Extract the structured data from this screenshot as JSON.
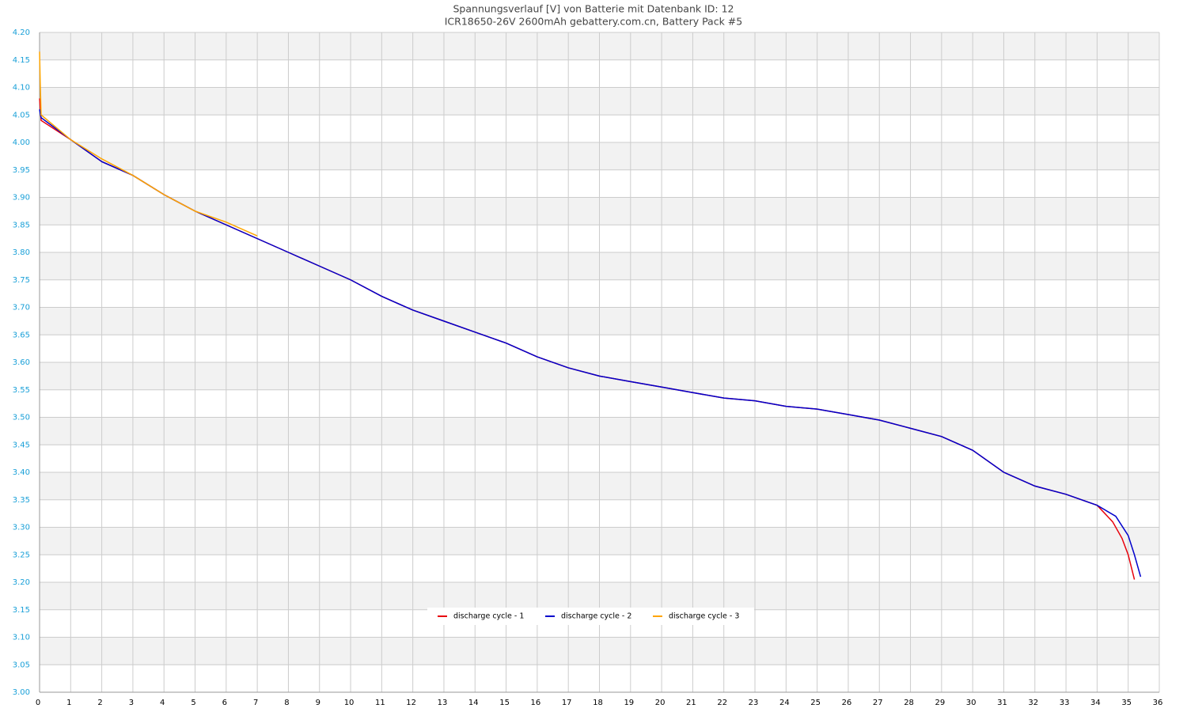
{
  "chart_data": {
    "type": "line",
    "title": "Spannungsverlauf [V] von Batterie mit Datenbank ID: 12",
    "subtitle": "ICR18650-26V 2600mAh gebattery.com.cn, Battery Pack #5",
    "xlim": [
      0,
      36
    ],
    "xticks": [
      0,
      1,
      2,
      3,
      4,
      5,
      6,
      7,
      8,
      9,
      10,
      11,
      12,
      13,
      14,
      15,
      16,
      17,
      18,
      19,
      20,
      21,
      22,
      23,
      24,
      25,
      26,
      27,
      28,
      29,
      30,
      31,
      32,
      33,
      34,
      35,
      36
    ],
    "ylim": [
      3.0,
      4.2
    ],
    "yticks": [
      {
        "value": 3.0,
        "label": "3.00"
      },
      {
        "value": 3.05,
        "label": "3.05"
      },
      {
        "value": 3.1,
        "label": "3.10"
      },
      {
        "value": 3.15,
        "label": "3.15"
      },
      {
        "value": 3.2,
        "label": "3.20"
      },
      {
        "value": 3.25,
        "label": "3.25"
      },
      {
        "value": 3.3,
        "label": "3.30"
      },
      {
        "value": 3.35,
        "label": "3.35"
      },
      {
        "value": 3.4,
        "label": "3.40"
      },
      {
        "value": 3.45,
        "label": "3.45"
      },
      {
        "value": 3.5,
        "label": "3.50"
      },
      {
        "value": 3.55,
        "label": "3.55"
      },
      {
        "value": 3.6,
        "label": "3.60"
      },
      {
        "value": 3.65,
        "label": "3.65"
      },
      {
        "value": 3.7,
        "label": "3.70"
      },
      {
        "value": 3.75,
        "label": "3.75"
      },
      {
        "value": 3.8,
        "label": "3.80"
      },
      {
        "value": 3.85,
        "label": "3.85"
      },
      {
        "value": 3.9,
        "label": "3.90"
      },
      {
        "value": 3.95,
        "label": "3.95"
      },
      {
        "value": 4.0,
        "label": "4.00"
      },
      {
        "value": 4.05,
        "label": "4.05"
      },
      {
        "value": 4.1,
        "label": "4.10"
      },
      {
        "value": 4.15,
        "label": "4.15"
      },
      {
        "value": 4.2,
        "label": "4.20"
      }
    ],
    "grid": true,
    "legend": "bottom",
    "series": [
      {
        "name": "discharge cycle - 1",
        "color": "#e8000b",
        "x": [
          0,
          0.05,
          1,
          2,
          3,
          4,
          5,
          6,
          7,
          8,
          9,
          10,
          11,
          12,
          13,
          14,
          15,
          16,
          17,
          18,
          19,
          20,
          21,
          22,
          23,
          24,
          25,
          26,
          27,
          28,
          29,
          30,
          31,
          32,
          33,
          34,
          34.5,
          34.8,
          35,
          35.2
        ],
        "values": [
          4.08,
          4.04,
          4.005,
          3.965,
          3.94,
          3.905,
          3.875,
          3.85,
          3.825,
          3.8,
          3.775,
          3.75,
          3.72,
          3.695,
          3.675,
          3.655,
          3.635,
          3.61,
          3.59,
          3.575,
          3.565,
          3.555,
          3.545,
          3.535,
          3.53,
          3.52,
          3.515,
          3.505,
          3.495,
          3.48,
          3.465,
          3.44,
          3.4,
          3.375,
          3.36,
          3.34,
          3.31,
          3.28,
          3.25,
          3.205
        ]
      },
      {
        "name": "discharge cycle - 2",
        "color": "#0000cc",
        "x": [
          0,
          0.05,
          1,
          2,
          3,
          4,
          5,
          6,
          7,
          8,
          9,
          10,
          11,
          12,
          13,
          14,
          15,
          16,
          17,
          18,
          19,
          20,
          21,
          22,
          23,
          24,
          25,
          26,
          27,
          28,
          29,
          30,
          31,
          32,
          33,
          34,
          34.6,
          35,
          35.2,
          35.4
        ],
        "values": [
          4.06,
          4.045,
          4.005,
          3.965,
          3.94,
          3.905,
          3.875,
          3.85,
          3.825,
          3.8,
          3.775,
          3.75,
          3.72,
          3.695,
          3.675,
          3.655,
          3.635,
          3.61,
          3.59,
          3.575,
          3.565,
          3.555,
          3.545,
          3.535,
          3.53,
          3.52,
          3.515,
          3.505,
          3.495,
          3.48,
          3.465,
          3.44,
          3.4,
          3.375,
          3.36,
          3.34,
          3.32,
          3.285,
          3.25,
          3.21
        ]
      },
      {
        "name": "discharge cycle - 3",
        "color": "#ffa500",
        "x": [
          0,
          0.02,
          0.05,
          1,
          2,
          3,
          4,
          5,
          6,
          7
        ],
        "values": [
          4.165,
          4.11,
          4.05,
          4.005,
          3.97,
          3.94,
          3.905,
          3.875,
          3.855,
          3.83
        ]
      }
    ]
  }
}
